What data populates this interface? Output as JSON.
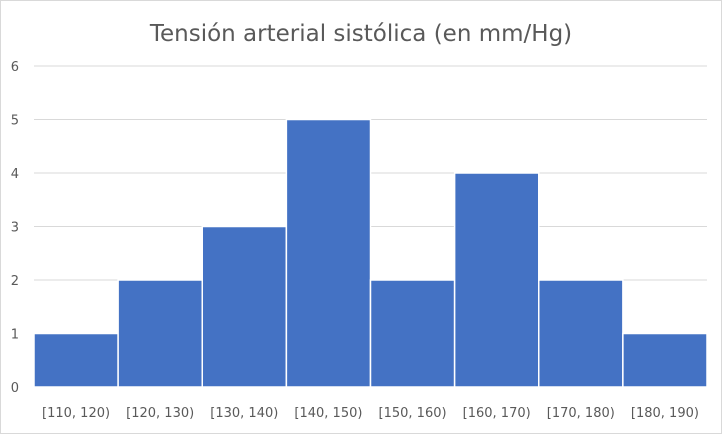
{
  "chart_data": {
    "type": "bar",
    "title": "Tensión arterial sistólica (en mm/Hg)",
    "xlabel": "",
    "ylabel": "",
    "categories": [
      "[110, 120)",
      "[120, 130)",
      "[130, 140)",
      "[140, 150)",
      "[150, 160)",
      "[160, 170)",
      "[170, 180)",
      "[180, 190)"
    ],
    "values": [
      1,
      2,
      3,
      5,
      2,
      4,
      2,
      1
    ],
    "ylim": [
      0,
      6
    ],
    "yticks": [
      0,
      1,
      2,
      3,
      4,
      5,
      6
    ],
    "grid": true,
    "legend": "none",
    "bar_color": "#4472C4"
  }
}
